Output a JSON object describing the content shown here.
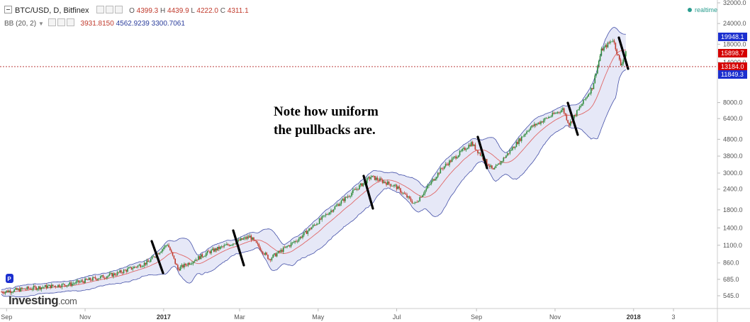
{
  "header": {
    "symbol": "BTC/USD, D, Bitfinex",
    "o_label": "O",
    "o_value": "4399.3",
    "h_label": "H",
    "h_value": "4439.9",
    "l_label": "L",
    "l_value": "4222.0",
    "c_label": "C",
    "c_value": "4311.1",
    "bb_label": "BB (20, 2)",
    "bb_values": [
      "3931.8150",
      "4562.9239",
      "3300.7061"
    ]
  },
  "realtime_label": "realtime",
  "note": "Note how uniform\nthe pullbacks are.",
  "logo": {
    "main": "Investing",
    "domain": ".com"
  },
  "marker_badge": "P",
  "colors": {
    "up": "#2e8b3a",
    "down": "#c0392b",
    "band_fill": "#e6e8f7",
    "band_line": "#4450a8",
    "ma_line": "#e06666",
    "price_line": "#b22222",
    "accent_blue": "#1b2fcf"
  },
  "price_labels": [
    {
      "value": "19948.1",
      "color": "#1b2fcf"
    },
    {
      "value": "15898.7",
      "color": "#d40000"
    },
    {
      "value": "13184.0",
      "color": "#d40000"
    },
    {
      "value": "11849.3",
      "color": "#1b2fcf"
    }
  ],
  "chart_data": {
    "type": "candlestick",
    "title": "BTC/USD, D, Bitfinex",
    "y_scale": "log",
    "ylim": [
      500,
      40000
    ],
    "y_ticks": [
      "32000.0",
      "24000.0",
      "18000.0",
      "14000.0",
      "8000.0",
      "6400.0",
      "4800.0",
      "3800.0",
      "3000.0",
      "2400.0",
      "1800.0",
      "1400.0",
      "1100.0",
      "860.0",
      "685.0",
      "545.0"
    ],
    "x_ticks": [
      "Sep",
      "Nov",
      "2017",
      "Mar",
      "May",
      "Jul",
      "Sep",
      "Nov",
      "2018",
      "3"
    ],
    "bb_period": 20,
    "bb_mult": 2,
    "close_path": [
      {
        "date": "2016-08-28",
        "close": 575
      },
      {
        "date": "2016-09-20",
        "close": 605
      },
      {
        "date": "2016-10-20",
        "close": 640
      },
      {
        "date": "2016-11-25",
        "close": 740
      },
      {
        "date": "2016-12-20",
        "close": 870
      },
      {
        "date": "2017-01-04",
        "close": 1120
      },
      {
        "date": "2017-01-12",
        "close": 790
      },
      {
        "date": "2017-02-05",
        "close": 1000
      },
      {
        "date": "2017-03-09",
        "close": 1240
      },
      {
        "date": "2017-03-24",
        "close": 910
      },
      {
        "date": "2017-04-15",
        "close": 1190
      },
      {
        "date": "2017-05-20",
        "close": 2050
      },
      {
        "date": "2017-06-11",
        "close": 2850
      },
      {
        "date": "2017-06-30",
        "close": 2500
      },
      {
        "date": "2017-07-15",
        "close": 1950
      },
      {
        "date": "2017-08-05",
        "close": 3200
      },
      {
        "date": "2017-08-28",
        "close": 4550
      },
      {
        "date": "2017-09-14",
        "close": 3100
      },
      {
        "date": "2017-10-12",
        "close": 5600
      },
      {
        "date": "2017-11-07",
        "close": 7300
      },
      {
        "date": "2017-11-12",
        "close": 5900
      },
      {
        "date": "2017-11-30",
        "close": 9900
      },
      {
        "date": "2017-12-07",
        "close": 16500
      },
      {
        "date": "2017-12-16",
        "close": 19300
      },
      {
        "date": "2017-12-22",
        "close": 13500
      },
      {
        "date": "2017-12-26",
        "close": 15898.7
      }
    ],
    "current_price": 13184.0,
    "bb_upper_last": 19948.1,
    "bb_lower_last": 11849.3
  }
}
